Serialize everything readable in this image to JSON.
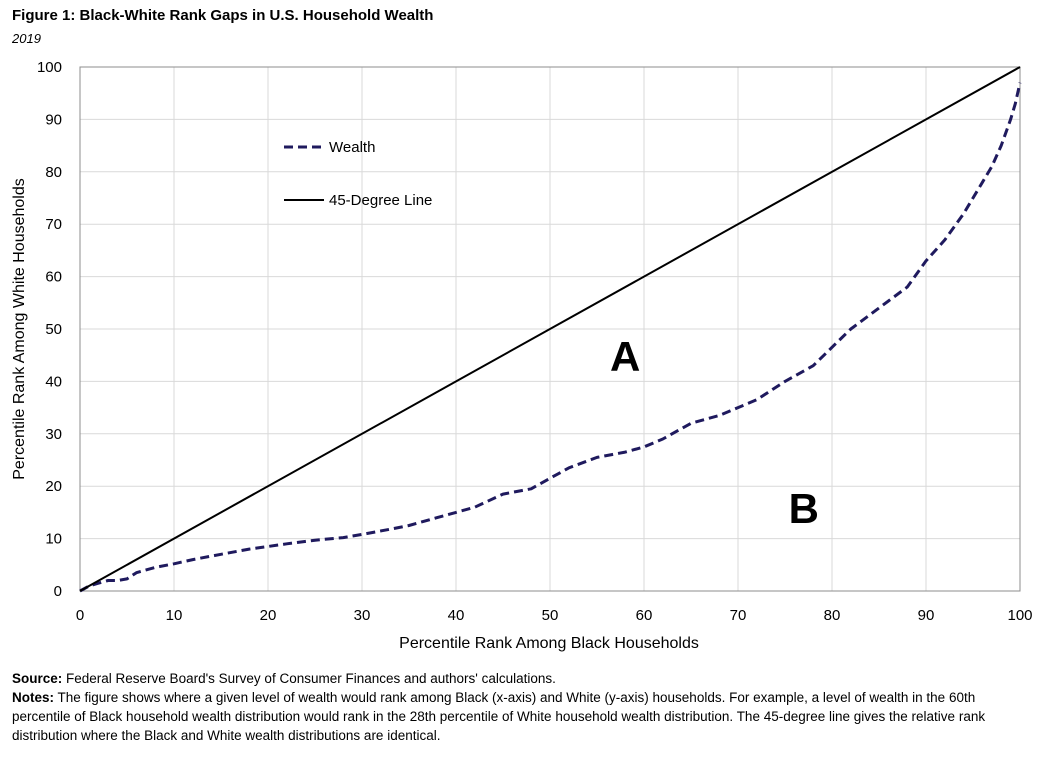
{
  "figure": {
    "title": "Figure 1: Black-White Rank Gaps in U.S. Household Wealth",
    "subtitle": "2019"
  },
  "footer": {
    "source_label": "Source:",
    "source_text": " Federal Reserve Board's Survey of Consumer Finances and authors' calculations.",
    "notes_label": "Notes:",
    "notes_text": " The figure shows where a given level of wealth would rank among Black (x-axis) and White (y-axis) households. For example, a level of wealth in the 60th percentile of Black household wealth distribution would rank in the 28th percentile of White household wealth distribution. The 45-degree line gives the relative rank distribution where the Black and White wealth distributions are identical."
  },
  "chart_data": {
    "type": "line",
    "title": "Figure 1: Black-White Rank Gaps in U.S. Household Wealth",
    "subtitle": "2019",
    "xlabel": "Percentile Rank Among  Black Households",
    "ylabel": "Percentile Rank Among White Households",
    "xlim": [
      0,
      100
    ],
    "ylim": [
      0,
      100
    ],
    "xticks": [
      0,
      10,
      20,
      30,
      40,
      50,
      60,
      70,
      80,
      90,
      100
    ],
    "yticks": [
      0,
      10,
      20,
      30,
      40,
      50,
      60,
      70,
      80,
      90,
      100
    ],
    "grid": true,
    "legend_position": "upper-left",
    "series": [
      {
        "name": "Wealth",
        "style": "dashed",
        "color": "#1f1a5e",
        "x": [
          0,
          1,
          2,
          3,
          4,
          5,
          6,
          8,
          10,
          12,
          15,
          18,
          20,
          22,
          25,
          28,
          30,
          33,
          35,
          38,
          40,
          42,
          45,
          48,
          50,
          52,
          55,
          58,
          60,
          62,
          65,
          68,
          70,
          72,
          75,
          78,
          80,
          82,
          85,
          88,
          90,
          92,
          94,
          96,
          97,
          98,
          99,
          99.5,
          100
        ],
        "values": [
          0,
          1,
          1.5,
          2,
          2,
          2.3,
          3.5,
          4.5,
          5.2,
          6,
          7,
          8,
          8.5,
          9,
          9.7,
          10.2,
          10.8,
          11.8,
          12.5,
          14,
          15,
          16,
          18.5,
          19.5,
          21.5,
          23.5,
          25.5,
          26.5,
          27.5,
          29,
          32,
          33.5,
          35,
          36.5,
          40,
          43,
          46.5,
          50,
          54,
          58,
          63,
          67,
          72,
          78,
          81,
          85,
          90,
          93,
          97
        ]
      },
      {
        "name": "45-Degree Line",
        "style": "solid",
        "color": "#000000",
        "x": [
          0,
          100
        ],
        "values": [
          0,
          100
        ]
      }
    ],
    "annotations": [
      {
        "text": "A",
        "x": 58,
        "y": 42
      },
      {
        "text": "B",
        "x": 77,
        "y": 13
      }
    ]
  }
}
